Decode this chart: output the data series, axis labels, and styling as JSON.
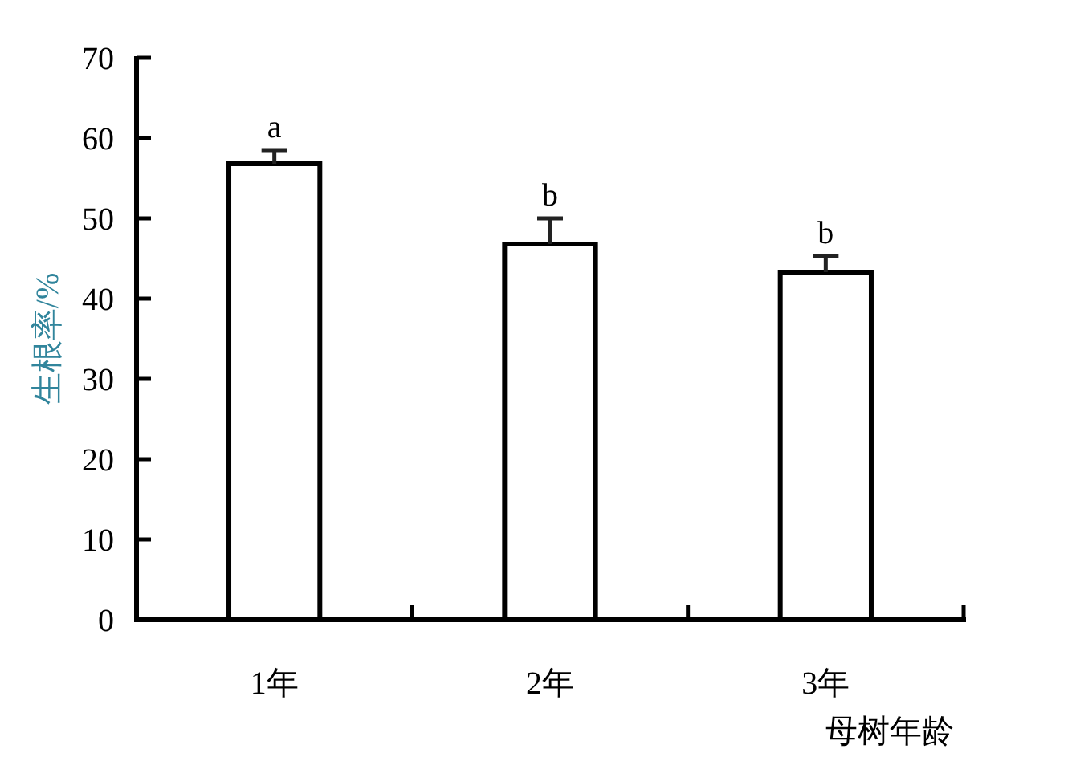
{
  "chart_data": {
    "type": "bar",
    "categories": [
      "1年",
      "2年",
      "3年"
    ],
    "values": [
      56.8,
      46.8,
      43.3
    ],
    "errors": [
      1.7,
      3.2,
      2.0
    ],
    "color": "#ffffff",
    "ylabel": "生根率/%",
    "xlabel": "母树年龄",
    "ylim": [
      0,
      70
    ],
    "yticks": [
      0,
      10,
      20,
      30,
      40,
      50,
      60,
      70
    ],
    "annotations": [
      {
        "text": "a",
        "x": "1年",
        "y": 58.5
      },
      {
        "text": "b",
        "x": "2年",
        "y": 50.0
      },
      {
        "text": "b",
        "x": "3年",
        "y": 45.3
      }
    ]
  }
}
